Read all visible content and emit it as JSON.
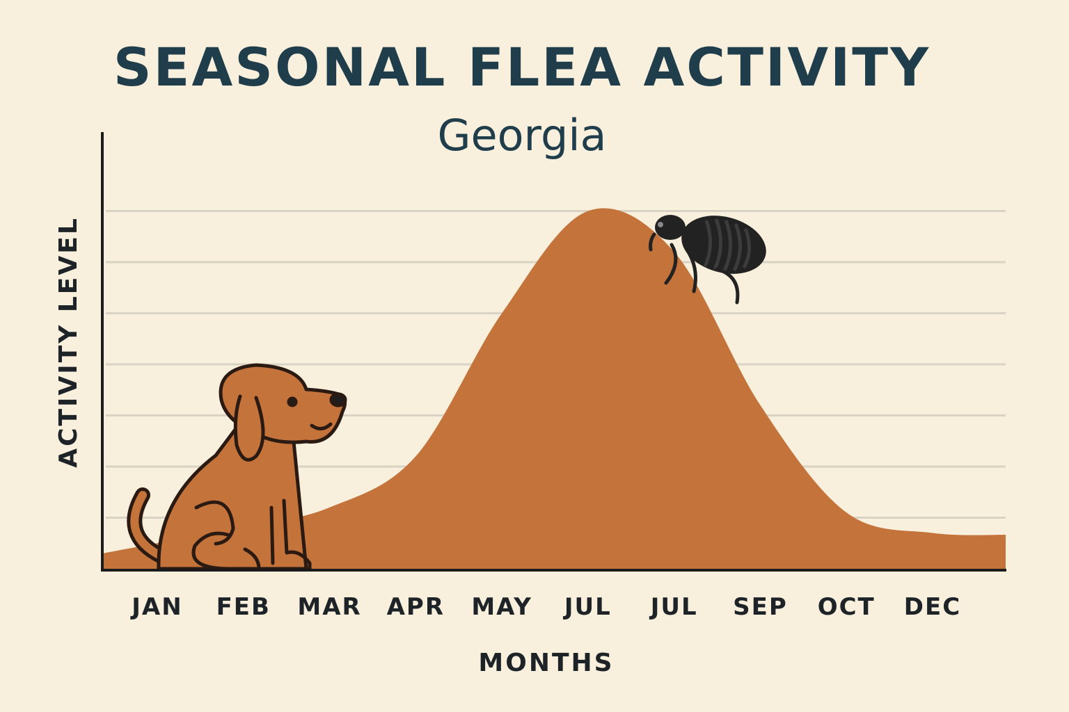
{
  "chart_data": {
    "type": "area",
    "title": "SEASONAL FLEA ACTIVITY",
    "subtitle": "Georgia",
    "xlabel": "MONTHS",
    "ylabel": "ACTIVITY LEVEL",
    "categories": [
      "JAN",
      "FEB",
      "MAR",
      "APR",
      "MAY",
      "JUL",
      "JUL",
      "SEP",
      "OCT",
      "DEC"
    ],
    "values": [
      0.5,
      0.8,
      1.2,
      2.2,
      5.0,
      7.0,
      6.2,
      3.2,
      1.1,
      0.7
    ],
    "ylim": [
      0,
      8
    ],
    "grid": true,
    "legend": "none",
    "colors": {
      "background": "#f8efdd",
      "area": "#c4733a",
      "grid": "#d8d3c4",
      "axis": "#1b1b1b",
      "title": "#1f3d4a",
      "dog": "#c4733a",
      "flea": "#222222"
    },
    "illustrations": [
      "dog-illustration",
      "flea-illustration"
    ]
  }
}
